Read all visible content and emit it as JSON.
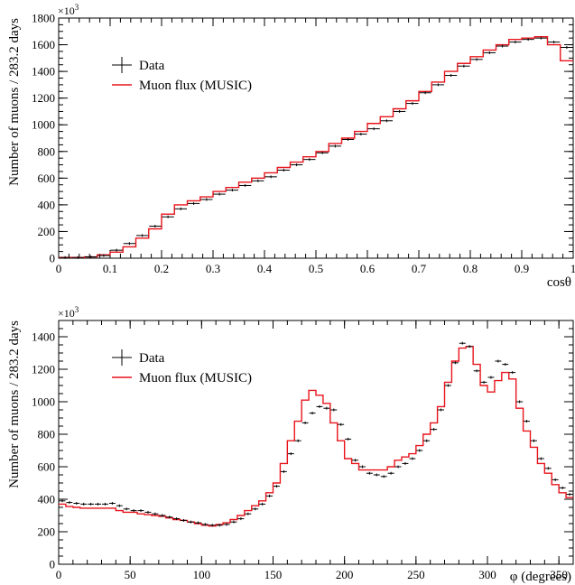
{
  "chart_data": [
    {
      "type": "histogram",
      "xlabel": "cosθ",
      "ylabel": "Number of muons / 283.2 days",
      "y_multiplier": "×10",
      "y_multiplier_exp": "3",
      "xlim": [
        0,
        1
      ],
      "ylim": [
        0,
        1800
      ],
      "x_ticks": [
        0,
        0.1,
        0.2,
        0.3,
        0.4,
        0.5,
        0.6,
        0.7,
        0.8,
        0.9,
        1
      ],
      "x_tick_labels": [
        "0",
        "0.1",
        "0.2",
        "0.3",
        "0.4",
        "0.5",
        "0.6",
        "0.7",
        "0.8",
        "0.9",
        "1"
      ],
      "y_ticks": [
        0,
        200,
        400,
        600,
        800,
        1000,
        1200,
        1400,
        1600,
        1800
      ],
      "y_tick_labels": [
        "0",
        "200",
        "400",
        "600",
        "800",
        "1000",
        "1200",
        "1400",
        "1600",
        "1800"
      ],
      "grid": false,
      "legend_position": "top-left",
      "bin_edges": [
        0,
        0.025,
        0.05,
        0.075,
        0.1,
        0.125,
        0.15,
        0.175,
        0.2,
        0.225,
        0.25,
        0.275,
        0.3,
        0.325,
        0.35,
        0.375,
        0.4,
        0.425,
        0.45,
        0.475,
        0.5,
        0.525,
        0.55,
        0.575,
        0.6,
        0.625,
        0.65,
        0.675,
        0.7,
        0.725,
        0.75,
        0.775,
        0.8,
        0.825,
        0.85,
        0.875,
        0.9,
        0.925,
        0.95,
        0.975,
        1.0
      ],
      "series": [
        {
          "name": "Data",
          "style": "points",
          "color": "#000000",
          "values": [
            5,
            5,
            10,
            20,
            60,
            110,
            170,
            240,
            310,
            370,
            410,
            440,
            480,
            510,
            545,
            580,
            610,
            660,
            700,
            740,
            790,
            840,
            890,
            930,
            970,
            1030,
            1100,
            1160,
            1240,
            1300,
            1370,
            1440,
            1490,
            1540,
            1590,
            1620,
            1640,
            1650,
            1620,
            1580
          ]
        },
        {
          "name": "Muon flux (MUSIC)",
          "style": "step",
          "color": "#e8141c",
          "values": [
            5,
            5,
            10,
            25,
            45,
            85,
            150,
            220,
            330,
            400,
            430,
            460,
            500,
            530,
            570,
            600,
            640,
            680,
            720,
            760,
            800,
            860,
            900,
            950,
            1010,
            1060,
            1120,
            1180,
            1250,
            1320,
            1400,
            1460,
            1510,
            1560,
            1600,
            1640,
            1650,
            1660,
            1600,
            1480
          ]
        }
      ]
    },
    {
      "type": "histogram",
      "xlabel": "φ (degrees)",
      "ylabel": "Number of muons / 283.2 days",
      "y_multiplier": "×10",
      "y_multiplier_exp": "3",
      "xlim": [
        0,
        360
      ],
      "ylim": [
        0,
        1500
      ],
      "x_ticks": [
        0,
        50,
        100,
        150,
        200,
        250,
        300,
        350
      ],
      "x_tick_labels": [
        "0",
        "50",
        "100",
        "150",
        "200",
        "250",
        "300",
        "350"
      ],
      "y_ticks": [
        0,
        200,
        400,
        600,
        800,
        1000,
        1200,
        1400
      ],
      "y_tick_labels": [
        "0",
        "200",
        "400",
        "600",
        "800",
        "1000",
        "1200",
        "1400"
      ],
      "grid": false,
      "legend_position": "top-left",
      "bin_width": 5,
      "series": [
        {
          "name": "Data",
          "style": "points",
          "color": "#000000",
          "values": [
            390,
            380,
            375,
            370,
            370,
            370,
            370,
            375,
            360,
            340,
            330,
            330,
            320,
            310,
            300,
            290,
            280,
            270,
            260,
            255,
            245,
            240,
            240,
            245,
            260,
            280,
            310,
            340,
            370,
            420,
            480,
            570,
            680,
            760,
            870,
            930,
            970,
            960,
            950,
            860,
            770,
            640,
            600,
            560,
            550,
            540,
            560,
            600,
            620,
            650,
            700,
            760,
            830,
            950,
            1100,
            1240,
            1360,
            1340,
            1190,
            1120,
            1150,
            1250,
            1230,
            1180,
            1000,
            880,
            760,
            650,
            590,
            520,
            470,
            430
          ]
        },
        {
          "name": "Muon flux (MUSIC)",
          "style": "step",
          "color": "#e8141c",
          "values": [
            370,
            355,
            350,
            345,
            345,
            345,
            345,
            345,
            330,
            320,
            320,
            310,
            305,
            300,
            295,
            285,
            275,
            270,
            260,
            250,
            240,
            235,
            245,
            255,
            275,
            300,
            330,
            360,
            390,
            440,
            500,
            620,
            760,
            880,
            1010,
            1070,
            1040,
            990,
            870,
            760,
            650,
            620,
            580,
            580,
            580,
            580,
            600,
            640,
            660,
            680,
            730,
            800,
            870,
            970,
            1120,
            1250,
            1330,
            1340,
            1230,
            1100,
            1060,
            1130,
            1180,
            1140,
            960,
            820,
            720,
            620,
            560,
            490,
            440,
            410
          ]
        }
      ]
    }
  ]
}
